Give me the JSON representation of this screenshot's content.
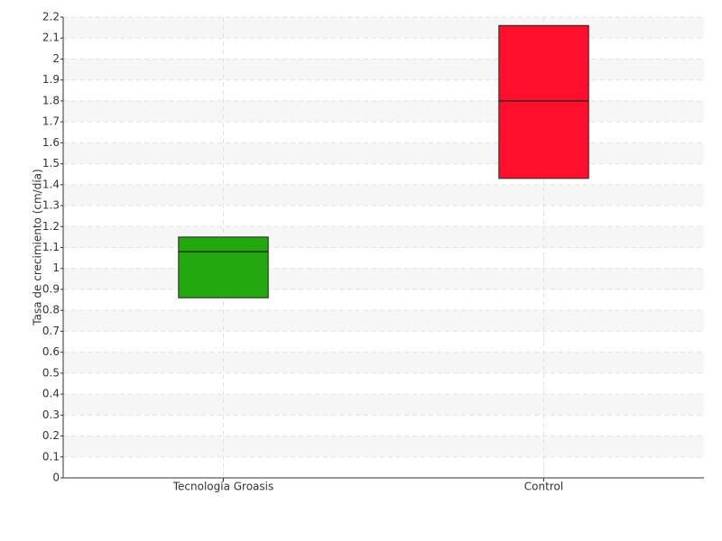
{
  "chart_data": {
    "type": "box",
    "y_label": "Tasa de crecimiento (cm/día)",
    "categories": [
      "Tecnología Groasis",
      "Control"
    ],
    "q1": [
      0.86,
      1.43
    ],
    "median": [
      1.08,
      1.8
    ],
    "q3": [
      1.15,
      2.16
    ],
    "colors": [
      "#22a70f",
      "#ff0f2b"
    ],
    "ylim": [
      0,
      2.2
    ],
    "yticks": [
      0,
      0.1,
      0.2,
      0.3,
      0.4,
      0.5,
      0.6,
      0.7,
      0.8,
      0.9,
      1,
      1.1,
      1.2,
      1.3,
      1.4,
      1.5,
      1.6,
      1.7,
      1.8,
      1.9,
      2,
      2.1,
      2.2
    ],
    "grid": true
  }
}
